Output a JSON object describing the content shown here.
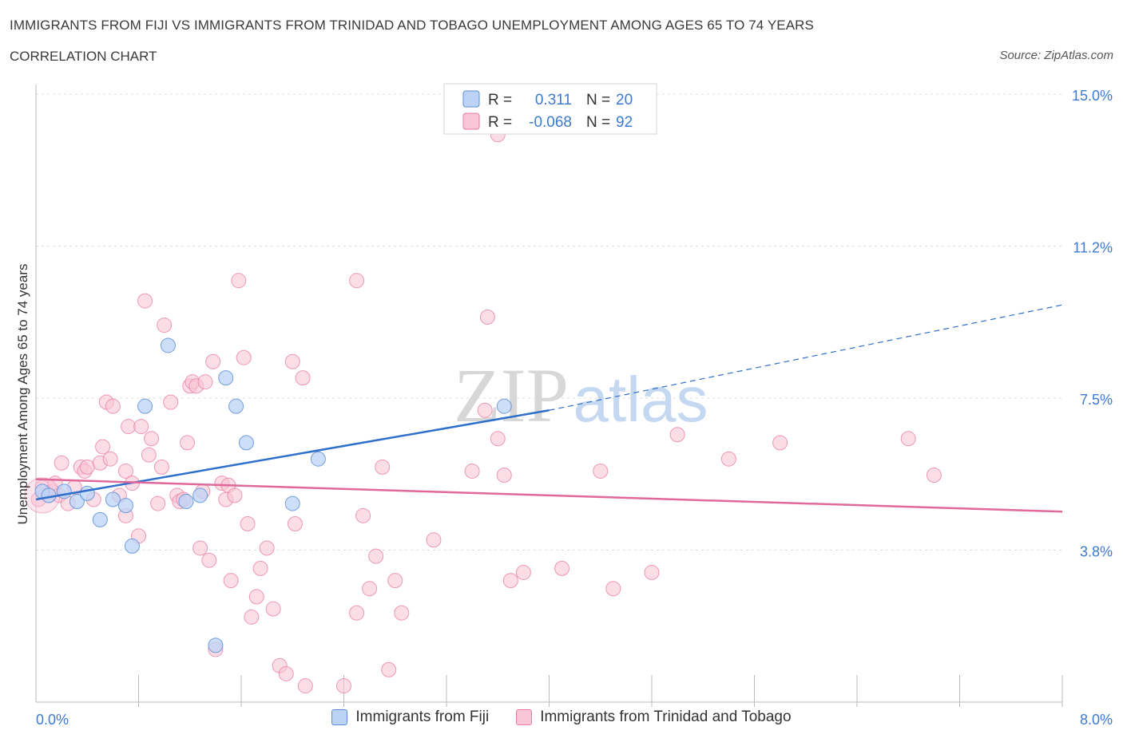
{
  "header": {
    "title": "IMMIGRANTS FROM FIJI VS IMMIGRANTS FROM TRINIDAD AND TOBAGO UNEMPLOYMENT AMONG AGES 65 TO 74 YEARS",
    "subtitle": "CORRELATION CHART",
    "source": "Source: ZipAtlas.com"
  },
  "watermark": {
    "zip": "ZIP",
    "atlas": "atlas"
  },
  "legend_top": {
    "rows": [
      {
        "r_label": "R =",
        "r_value": "0.311",
        "n_label": "N =",
        "n_value": "20"
      },
      {
        "r_label": "R =",
        "r_value": "-0.068",
        "n_label": "N =",
        "n_value": "92"
      }
    ]
  },
  "legend_bottom": {
    "items": [
      {
        "label": "Immigrants from Fiji"
      },
      {
        "label": "Immigrants from Trinidad and Tobago"
      }
    ]
  },
  "chart_data": {
    "type": "scatter",
    "title": "IMMIGRANTS FROM FIJI VS IMMIGRANTS FROM TRINIDAD AND TOBAGO UNEMPLOYMENT AMONG AGES 65 TO 74 YEARS",
    "subtitle": "CORRELATION CHART",
    "xlabel": "",
    "ylabel": "Unemployment Among Ages 65 to 74 years",
    "xlim": [
      0,
      8
    ],
    "ylim": [
      0,
      15
    ],
    "x_tick_labels": [
      "0.0%",
      "8.0%"
    ],
    "y_tick_labels": [
      "15.0%",
      "11.2%",
      "7.5%",
      "3.8%"
    ],
    "y_ticks": [
      15.0,
      11.25,
      7.5,
      3.75
    ],
    "grid": true,
    "colors": {
      "fiji": "#5b8fd8",
      "fiji_fill": "#bcd3f5",
      "tt": "#e87aa0",
      "tt_fill": "#f8c6d6",
      "fiji_line": "#2e6fcc",
      "tt_line": "#e0689a",
      "tick": "#3d7bd1"
    },
    "series": [
      {
        "name": "Immigrants from Fiji",
        "r": 0.311,
        "n": 20,
        "trend": {
          "x0": 0.0,
          "y0": 5.0,
          "x1": 4.0,
          "y1": 7.2,
          "x_ext": 8.0,
          "y_ext": 9.8
        },
        "points": [
          [
            0.05,
            5.2
          ],
          [
            0.1,
            5.1
          ],
          [
            0.22,
            5.2
          ],
          [
            0.32,
            4.95
          ],
          [
            0.4,
            5.15
          ],
          [
            0.5,
            4.5
          ],
          [
            0.6,
            5.0
          ],
          [
            0.7,
            4.85
          ],
          [
            0.75,
            3.85
          ],
          [
            0.85,
            7.3
          ],
          [
            1.03,
            8.8
          ],
          [
            1.17,
            4.95
          ],
          [
            1.28,
            5.1
          ],
          [
            1.4,
            1.4
          ],
          [
            1.48,
            8.0
          ],
          [
            1.56,
            7.3
          ],
          [
            1.64,
            6.4
          ],
          [
            2.0,
            4.9
          ],
          [
            2.2,
            6.0
          ],
          [
            3.65,
            7.3
          ]
        ]
      },
      {
        "name": "Immigrants from Trinidad and Tobago",
        "r": -0.068,
        "n": 92,
        "trend": {
          "x0": 0.0,
          "y0": 5.5,
          "x1": 8.0,
          "y1": 4.7
        },
        "points": [
          [
            0.02,
            5.0
          ],
          [
            0.05,
            5.3
          ],
          [
            0.1,
            5.1
          ],
          [
            0.12,
            5.2
          ],
          [
            0.15,
            5.4
          ],
          [
            0.18,
            5.1
          ],
          [
            0.2,
            5.9
          ],
          [
            0.25,
            4.9
          ],
          [
            0.3,
            5.3
          ],
          [
            0.35,
            5.8
          ],
          [
            0.38,
            5.7
          ],
          [
            0.4,
            5.8
          ],
          [
            0.45,
            5.0
          ],
          [
            0.5,
            5.9
          ],
          [
            0.52,
            6.3
          ],
          [
            0.55,
            7.4
          ],
          [
            0.58,
            6.0
          ],
          [
            0.6,
            7.3
          ],
          [
            0.65,
            5.1
          ],
          [
            0.7,
            5.7
          ],
          [
            0.7,
            4.6
          ],
          [
            0.72,
            6.8
          ],
          [
            0.75,
            5.4
          ],
          [
            0.8,
            4.1
          ],
          [
            0.82,
            6.8
          ],
          [
            0.85,
            9.9
          ],
          [
            0.88,
            6.1
          ],
          [
            0.9,
            6.5
          ],
          [
            0.95,
            4.9
          ],
          [
            0.98,
            5.8
          ],
          [
            1.0,
            9.3
          ],
          [
            1.05,
            7.4
          ],
          [
            1.1,
            5.1
          ],
          [
            1.12,
            4.95
          ],
          [
            1.15,
            5.0
          ],
          [
            1.18,
            6.4
          ],
          [
            1.2,
            7.8
          ],
          [
            1.22,
            7.9
          ],
          [
            1.25,
            7.8
          ],
          [
            1.28,
            3.8
          ],
          [
            1.3,
            5.2
          ],
          [
            1.32,
            7.9
          ],
          [
            1.35,
            3.5
          ],
          [
            1.38,
            8.4
          ],
          [
            1.4,
            1.3
          ],
          [
            1.45,
            5.4
          ],
          [
            1.48,
            5.0
          ],
          [
            1.5,
            5.35
          ],
          [
            1.52,
            3.0
          ],
          [
            1.55,
            5.1
          ],
          [
            1.58,
            10.4
          ],
          [
            1.62,
            8.5
          ],
          [
            1.65,
            4.4
          ],
          [
            1.68,
            2.1
          ],
          [
            1.72,
            2.6
          ],
          [
            1.75,
            3.3
          ],
          [
            1.8,
            3.8
          ],
          [
            1.85,
            2.3
          ],
          [
            1.9,
            0.9
          ],
          [
            1.95,
            0.7
          ],
          [
            2.0,
            8.4
          ],
          [
            2.02,
            4.4
          ],
          [
            2.08,
            8.0
          ],
          [
            2.1,
            0.4
          ],
          [
            2.4,
            0.4
          ],
          [
            2.5,
            10.4
          ],
          [
            2.5,
            2.2
          ],
          [
            2.55,
            4.6
          ],
          [
            2.6,
            2.8
          ],
          [
            2.65,
            3.6
          ],
          [
            2.7,
            5.8
          ],
          [
            2.75,
            0.8
          ],
          [
            2.8,
            3.0
          ],
          [
            2.85,
            2.2
          ],
          [
            3.1,
            4.0
          ],
          [
            3.4,
            5.7
          ],
          [
            3.5,
            7.2
          ],
          [
            3.52,
            9.5
          ],
          [
            3.6,
            6.5
          ],
          [
            3.65,
            5.6
          ],
          [
            3.7,
            3.0
          ],
          [
            3.8,
            3.2
          ],
          [
            4.1,
            3.3
          ],
          [
            4.4,
            5.7
          ],
          [
            4.5,
            2.8
          ],
          [
            4.8,
            3.2
          ],
          [
            5.0,
            6.6
          ],
          [
            5.4,
            6.0
          ],
          [
            5.8,
            6.4
          ],
          [
            6.8,
            6.5
          ],
          [
            7.0,
            5.6
          ],
          [
            3.6,
            14.0
          ]
        ]
      }
    ]
  }
}
